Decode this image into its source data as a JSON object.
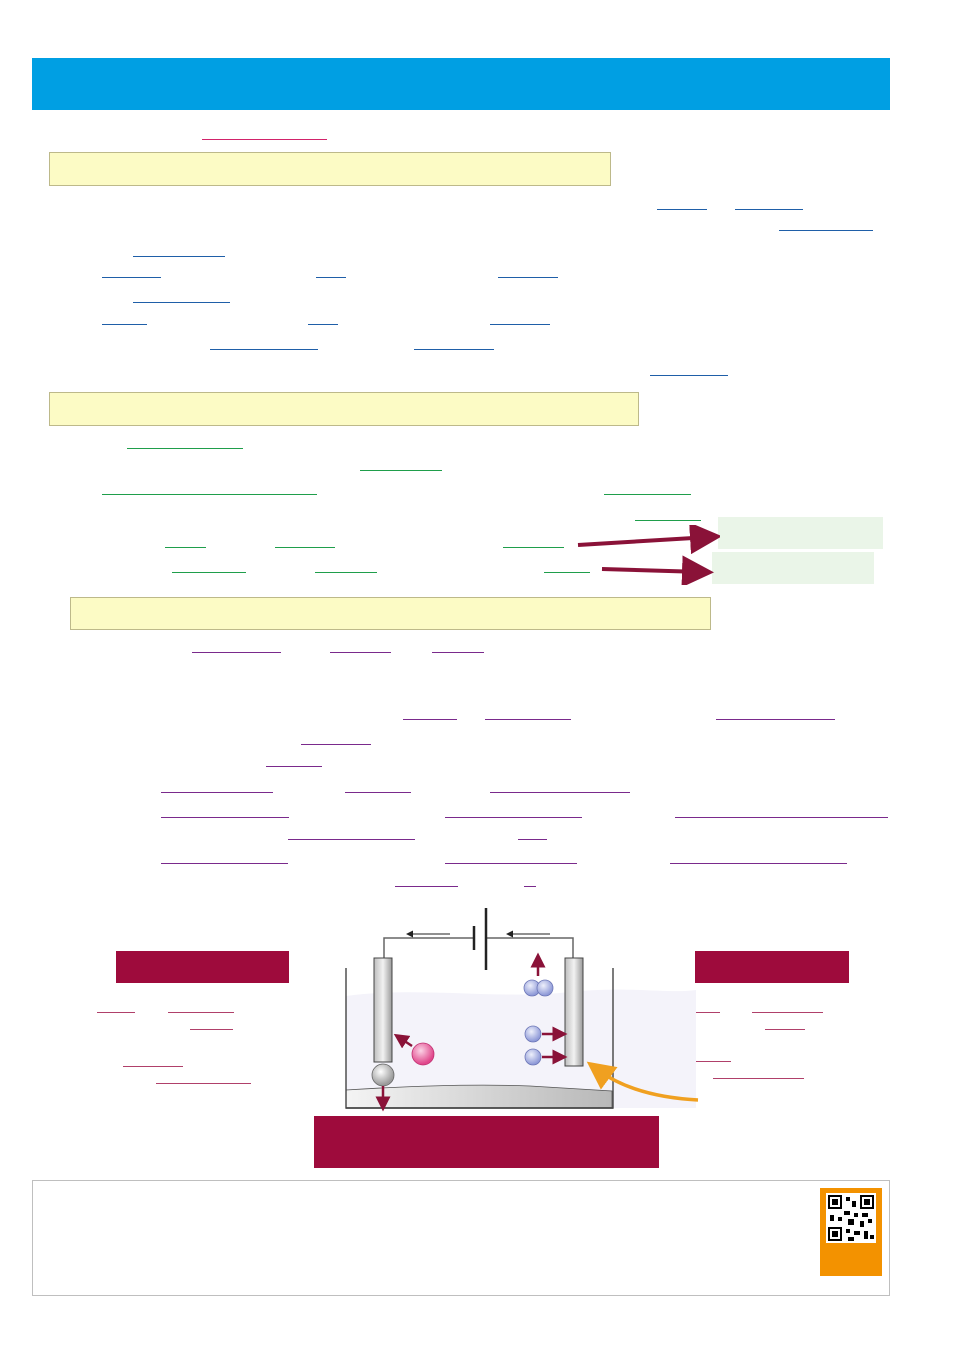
{
  "page": {
    "title": "",
    "colors": {
      "banner": "#009fe3",
      "section_fill": "#fcfbc5",
      "answer_fill": "#eaf5e8",
      "label_fill": "#9e0b3c",
      "arrow": "#8a1238",
      "qr_frame": "#f39200"
    }
  },
  "diagram": {
    "icons": [
      "battery-icon",
      "electrode-icon",
      "ion-icon",
      "bubble-icon",
      "arrow-icon"
    ]
  }
}
